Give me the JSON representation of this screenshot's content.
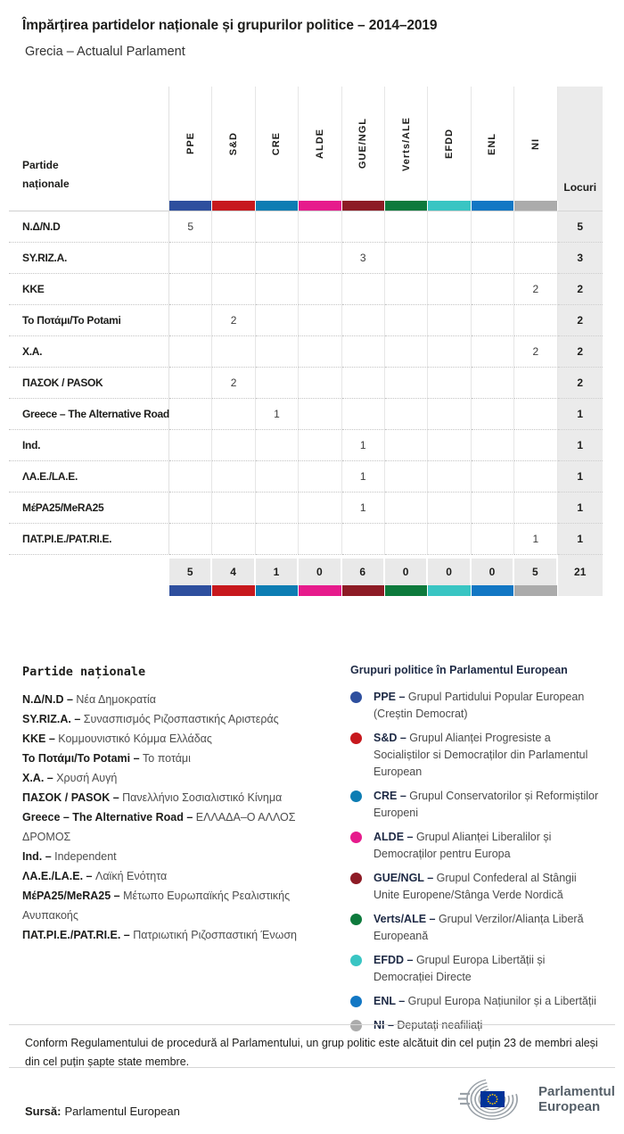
{
  "title": "Împărțirea partidelor naționale și grupurilor politice – 2014–2019",
  "subtitle": "Grecia – Actualul Parlament",
  "chart_data": {
    "type": "table",
    "row_header_label": "Partide naționale",
    "seats_label": "Locuri",
    "groups": [
      {
        "code": "PPE",
        "color": "#2e4f9e"
      },
      {
        "code": "S&D",
        "color": "#c7181d"
      },
      {
        "code": "CRE",
        "color": "#0d7db3"
      },
      {
        "code": "ALDE",
        "color": "#e61b8c"
      },
      {
        "code": "GUE/NGL",
        "color": "#8d1b25"
      },
      {
        "code": "Verts/ALE",
        "color": "#0d7a3c"
      },
      {
        "code": "EFDD",
        "color": "#39c5c3"
      },
      {
        "code": "ENL",
        "color": "#1277c4"
      },
      {
        "code": "NI",
        "color": "#ababab"
      }
    ],
    "rows": [
      {
        "party": "Ν.Δ/N.D",
        "values": [
          5,
          null,
          null,
          null,
          null,
          null,
          null,
          null,
          null
        ],
        "seats": 5
      },
      {
        "party": "SY.RIZ.A.",
        "values": [
          null,
          null,
          null,
          null,
          3,
          null,
          null,
          null,
          null
        ],
        "seats": 3
      },
      {
        "party": "KKE",
        "values": [
          null,
          null,
          null,
          null,
          null,
          null,
          null,
          null,
          2
        ],
        "seats": 2
      },
      {
        "party": "Το Ποτάμι/To Potami",
        "values": [
          null,
          2,
          null,
          null,
          null,
          null,
          null,
          null,
          null
        ],
        "seats": 2
      },
      {
        "party": "Χ.Α.",
        "values": [
          null,
          null,
          null,
          null,
          null,
          null,
          null,
          null,
          2
        ],
        "seats": 2
      },
      {
        "party": "ΠΑΣΟΚ / PASOK",
        "values": [
          null,
          2,
          null,
          null,
          null,
          null,
          null,
          null,
          null
        ],
        "seats": 2
      },
      {
        "party": "Greece – The Alternative Road",
        "values": [
          null,
          null,
          1,
          null,
          null,
          null,
          null,
          null,
          null
        ],
        "seats": 1
      },
      {
        "party": "Ind.",
        "values": [
          null,
          null,
          null,
          null,
          1,
          null,
          null,
          null,
          null
        ],
        "seats": 1
      },
      {
        "party": "ΛΑ.Ε./LA.E.",
        "values": [
          null,
          null,
          null,
          null,
          1,
          null,
          null,
          null,
          null
        ],
        "seats": 1
      },
      {
        "party": "ΜέΡΑ25/MeRA25",
        "values": [
          null,
          null,
          null,
          null,
          1,
          null,
          null,
          null,
          null
        ],
        "seats": 1
      },
      {
        "party": "ΠΑΤ.ΡΙ.Ε./PAT.RI.E.",
        "values": [
          null,
          null,
          null,
          null,
          null,
          null,
          null,
          null,
          1
        ],
        "seats": 1
      }
    ],
    "totals": {
      "values": [
        5,
        4,
        1,
        0,
        6,
        0,
        0,
        0,
        5
      ],
      "seats": 21
    }
  },
  "party_legend": {
    "heading": "Partide naționale",
    "separator": "–",
    "items": [
      {
        "name": "Ν.Δ/N.D",
        "description": "Νέα Δημοκρατία"
      },
      {
        "name": "SY.RIZ.A.",
        "description": "Συνασπισμός Ριζοσπαστικής Αριστεράς"
      },
      {
        "name": "KKE",
        "description": "Κομμουνιστικό Κόμμα Ελλάδας"
      },
      {
        "name": "Το Ποτάμι/To Potami",
        "description": "Το ποτάμι"
      },
      {
        "name": "Χ.Α.",
        "description": "Χρυσή Αυγή"
      },
      {
        "name": "ΠΑΣΟΚ / PASOK",
        "description": "Πανελλήνιο Σοσιαλιστικό Κίνημα"
      },
      {
        "name": "Greece – The Alternative Road",
        "description": "ΕΛΛΑΔΑ–Ο ΑΛΛΟΣ ΔΡΟΜΟΣ"
      },
      {
        "name": "Ind.",
        "description": "Independent"
      },
      {
        "name": "ΛΑ.Ε./LA.E.",
        "description": "Λαϊκή Ενότητα"
      },
      {
        "name": "ΜέΡΑ25/MeRA25",
        "description": "Μέτωπο Ευρωπαϊκής Ρεαλιστικής Ανυπακοής"
      },
      {
        "name": "ΠΑΤ.ΡΙ.Ε./PAT.RI.E.",
        "description": "Πατριωτική Ριζοσπαστική Ένωση"
      }
    ]
  },
  "group_legend": {
    "heading": "Grupuri politice în Parlamentul European",
    "separator": "–",
    "items": [
      {
        "code": "PPE",
        "color": "#2e4f9e",
        "description": "Grupul Partidului Popular European (Creștin Democrat)"
      },
      {
        "code": "S&D",
        "color": "#c7181d",
        "description": "Grupul Alianței Progresiste a Socialiștilor si Democraților din Parlamentul European"
      },
      {
        "code": "CRE",
        "color": "#0d7db3",
        "description": "Grupul Conservatorilor și Reformiștilor Europeni"
      },
      {
        "code": "ALDE",
        "color": "#e61b8c",
        "description": "Grupul Alianței Liberalilor și Democraților pentru Europa"
      },
      {
        "code": "GUE/NGL",
        "color": "#8d1b25",
        "description": "Grupul Confederal al Stângii Unite Europene/Stânga Verde Nordică"
      },
      {
        "code": "Verts/ALE",
        "color": "#0d7a3c",
        "description": "Grupul Verzilor/Alianța Liberă Europeană"
      },
      {
        "code": "EFDD",
        "color": "#39c5c3",
        "description": "Grupul Europa Libertății și Democrației Directe"
      },
      {
        "code": "ENL",
        "color": "#1277c4",
        "description": "Grupul Europa Națiunilor și a Libertății"
      },
      {
        "code": "NI",
        "color": "#ababab",
        "description": "Deputați neafiliați"
      }
    ]
  },
  "footnote": "Conform Regulamentului de procedură al Parlamentului, un grup politic este alcătuit din cel puțin 23 de membri aleși din cel puțin șapte state membre.",
  "source": {
    "label": "Sursă:",
    "value": "Parlamentul European"
  },
  "logo": {
    "line1": "Parlamentul",
    "line2": "European"
  }
}
